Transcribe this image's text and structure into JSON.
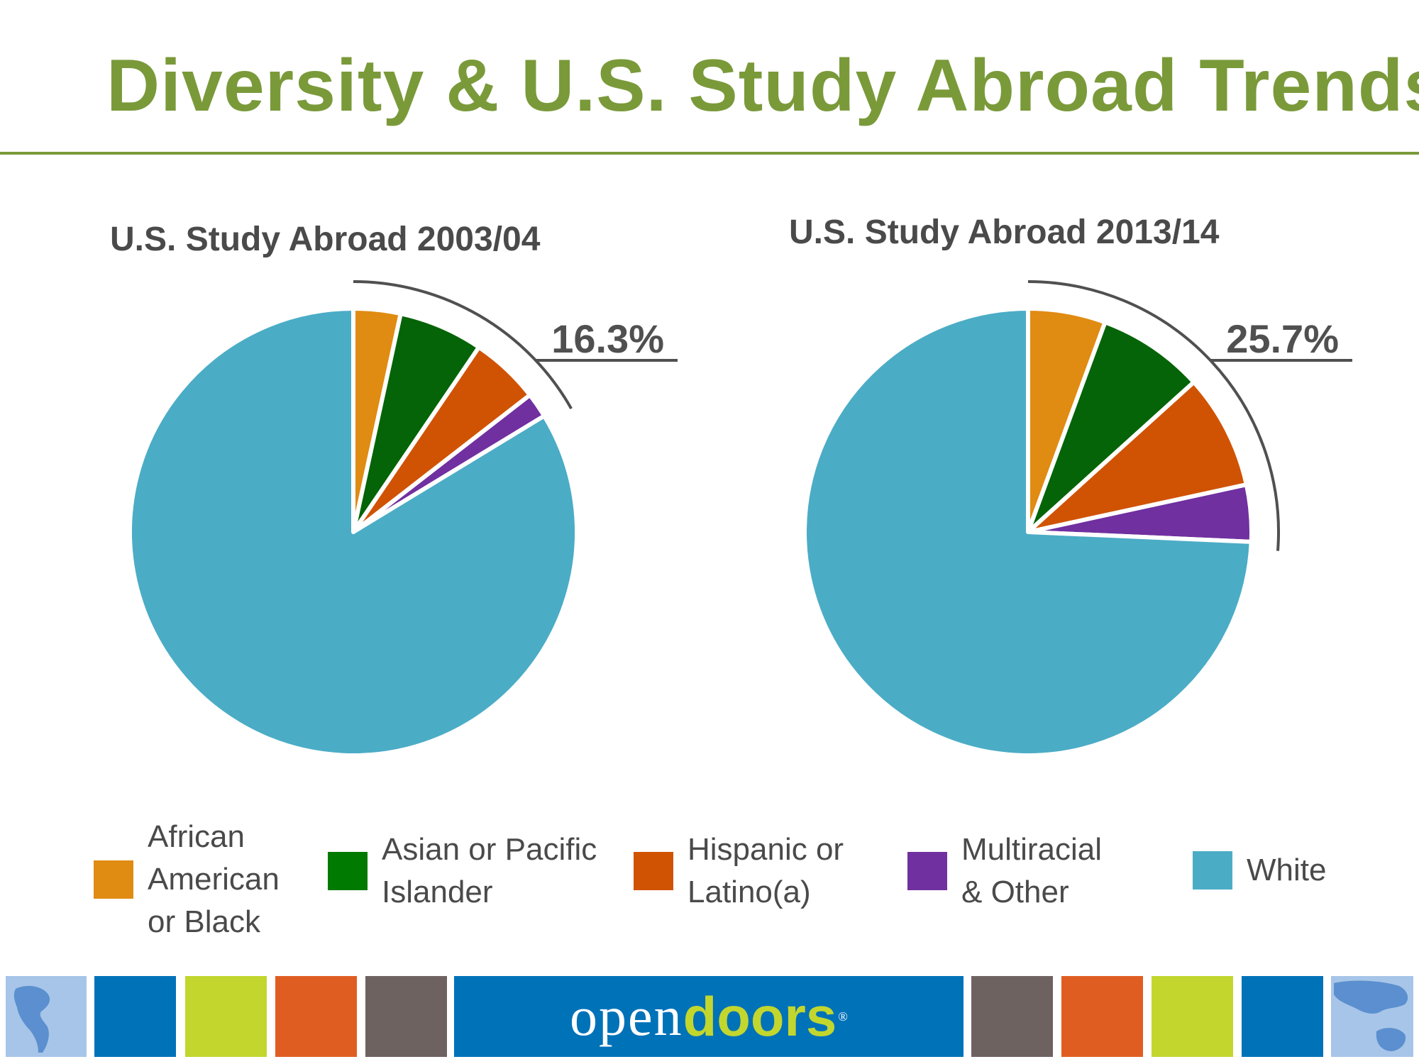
{
  "title": "Diversity & U.S. Study Abroad Trends",
  "colors": {
    "accent": "#7a9a3a",
    "african_american": "#e08b12",
    "asian": "#056407",
    "hispanic": "#d05304",
    "multiracial": "#7030a0",
    "white": "#4bacc6",
    "bracket": "#505050"
  },
  "legend": [
    {
      "label": "African\nAmerican\nor Black",
      "color": "#e08b12"
    },
    {
      "label": "Asian or Pacific\nIslander",
      "color": "#007a00"
    },
    {
      "label": "Hispanic or\nLatino(a)",
      "color": "#d05304"
    },
    {
      "label": "Multiracial\n& Other",
      "color": "#7030a0"
    },
    {
      "label": "White",
      "color": "#4bacc6"
    }
  ],
  "chart_data": [
    {
      "type": "pie",
      "title": "U.S. Study Abroad 2003/04",
      "categories": [
        "African American or Black",
        "Asian or Pacific Islander",
        "Hispanic or Latino(a)",
        "Multiracial & Other",
        "White"
      ],
      "values": [
        3.4,
        6.1,
        5.0,
        1.8,
        83.7
      ],
      "callout": "16.3%"
    },
    {
      "type": "pie",
      "title": "U.S. Study Abroad 2013/14",
      "categories": [
        "African American or Black",
        "Asian or Pacific Islander",
        "Hispanic or Latino(a)",
        "Multiracial & Other",
        "White"
      ],
      "values": [
        5.6,
        7.7,
        8.3,
        4.1,
        74.3
      ],
      "callout": "25.7%"
    }
  ],
  "footer": {
    "brand_open": "open",
    "brand_doors": "doors",
    "brand_mark": "®",
    "tile_colors": [
      "#0072b8",
      "#c2d62e",
      "#e05d22",
      "#6e6260",
      "#6e6260",
      "#e05d22",
      "#c2d62e",
      "#0072b8"
    ]
  }
}
